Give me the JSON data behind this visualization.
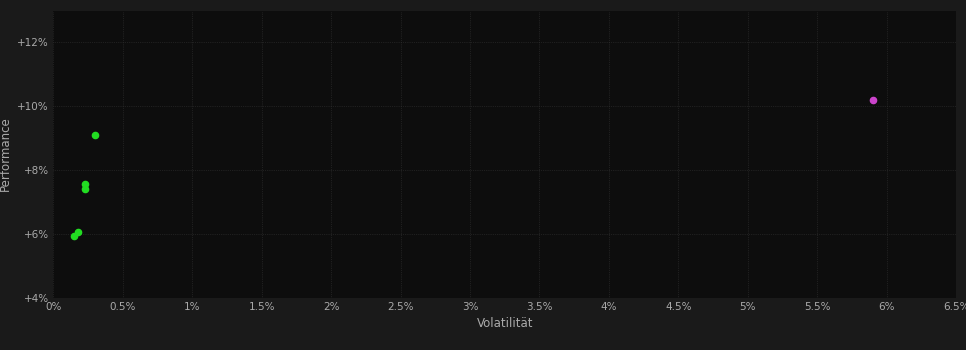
{
  "background_color": "#1a1a1a",
  "plot_bg_color": "#0d0d0d",
  "grid_color": "#333333",
  "xlabel": "Volatilität",
  "ylabel": "Performance",
  "xlim": [
    0,
    0.065
  ],
  "ylim": [
    0.04,
    0.13
  ],
  "x_ticks": [
    0.0,
    0.005,
    0.01,
    0.015,
    0.02,
    0.025,
    0.03,
    0.035,
    0.04,
    0.045,
    0.05,
    0.055,
    0.06,
    0.065
  ],
  "x_tick_labels": [
    "0%",
    "0.5%",
    "1%",
    "1.5%",
    "2%",
    "2.5%",
    "3%",
    "3.5%",
    "4%",
    "4.5%",
    "5%",
    "5.5%",
    "6%",
    "6.5%"
  ],
  "y_ticks": [
    0.04,
    0.06,
    0.08,
    0.1,
    0.12
  ],
  "y_tick_labels": [
    "+4%",
    "+6%",
    "+8%",
    "+10%",
    "+12%"
  ],
  "green_points": [
    [
      0.0018,
      0.0605
    ],
    [
      0.0015,
      0.0593
    ],
    [
      0.0023,
      0.0755
    ],
    [
      0.0023,
      0.074
    ],
    [
      0.003,
      0.091
    ]
  ],
  "magenta_points": [
    [
      0.059,
      0.102
    ]
  ],
  "green_color": "#22dd22",
  "magenta_color": "#cc44cc",
  "point_size": 20,
  "tick_color": "#aaaaaa",
  "label_color": "#aaaaaa",
  "grid_linestyle": ":",
  "grid_linewidth": 0.5,
  "tick_fontsize": 7.5,
  "label_fontsize": 8.5
}
